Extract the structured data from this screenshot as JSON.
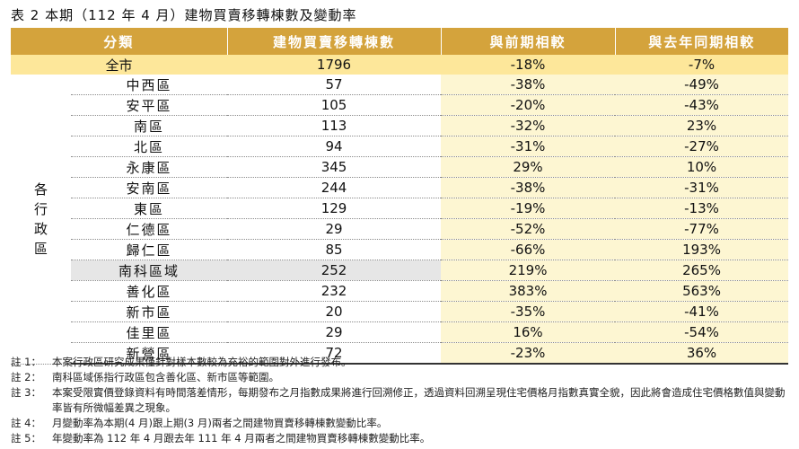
{
  "title": "表 2 本期（112 年 4 月）建物買賣移轉棟數及變動率",
  "headers": [
    "分類",
    "建物買賣移轉棟數",
    "與前期相較",
    "與去年同期相較"
  ],
  "total": {
    "label": "全市",
    "count": "1796",
    "prev": "-18%",
    "yoy": "-7%"
  },
  "group_label": [
    "各",
    "行",
    "政",
    "區"
  ],
  "rows": [
    {
      "district": "中西區",
      "count": "57",
      "prev": "-38%",
      "yoy": "-49%"
    },
    {
      "district": "安平區",
      "count": "105",
      "prev": "-20%",
      "yoy": "-43%"
    },
    {
      "district": "南區",
      "count": "113",
      "prev": "-32%",
      "yoy": "23%"
    },
    {
      "district": "北區",
      "count": "94",
      "prev": "-31%",
      "yoy": "-27%"
    },
    {
      "district": "永康區",
      "count": "345",
      "prev": "29%",
      "yoy": "10%"
    },
    {
      "district": "安南區",
      "count": "244",
      "prev": "-38%",
      "yoy": "-31%"
    },
    {
      "district": "東區",
      "count": "129",
      "prev": "-19%",
      "yoy": "-13%"
    },
    {
      "district": "仁德區",
      "count": "29",
      "prev": "-52%",
      "yoy": "-77%"
    },
    {
      "district": "歸仁區",
      "count": "85",
      "prev": "-66%",
      "yoy": "193%"
    },
    {
      "district": "南科區域",
      "count": "252",
      "prev": "219%",
      "yoy": "265%"
    },
    {
      "district": "善化區",
      "count": "232",
      "prev": "383%",
      "yoy": "563%"
    },
    {
      "district": "新市區",
      "count": "20",
      "prev": "-35%",
      "yoy": "-41%"
    },
    {
      "district": "佳里區",
      "count": "29",
      "prev": "16%",
      "yoy": "-54%"
    },
    {
      "district": "新營區",
      "count": "72",
      "prev": "-23%",
      "yoy": "36%"
    }
  ],
  "notes": [
    {
      "tag": "註 1：",
      "text": "本案行政區研究成果僅針對樣本數較為充裕的範圍對外進行發布。"
    },
    {
      "tag": "註 2：",
      "text": "南科區域係指行政區包含善化區、新市區等範圍。"
    },
    {
      "tag": "註 3：",
      "text": "本案受限實價登錄資料有時間落差情形，每期發布之月指數成果將進行回溯修正，透過資料回溯呈現住宅價格月指數真實全貌，因此將會造成住宅價格數值與變動率皆有所微幅差異之現象。"
    },
    {
      "tag": "註 4：",
      "text": "月變動率為本期(4 月)跟上期(3 月)兩者之間建物買賣移轉棟數變動比率。"
    },
    {
      "tag": "註 5：",
      "text": "年變動率為 112 年 4 月跟去年 111 年 4 月兩者之間建物買賣移轉棟數變動比率。"
    }
  ]
}
